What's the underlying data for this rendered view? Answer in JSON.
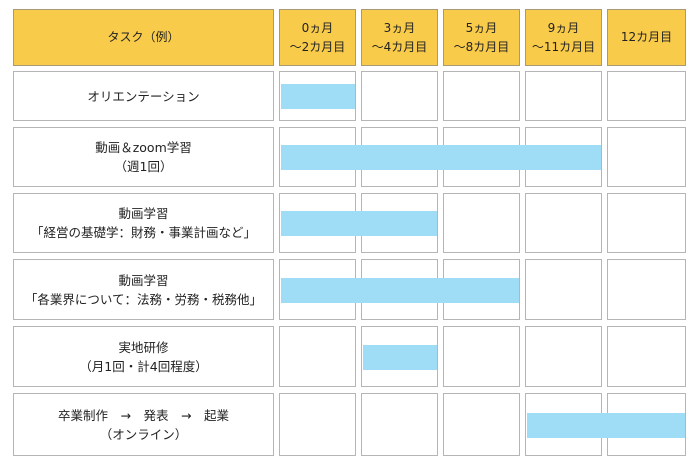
{
  "colors": {
    "header_bg": "#f9cb4a",
    "bar": "#9fdcf5",
    "border": "#b5b5b5"
  },
  "header": {
    "task_label": "タスク（例）",
    "months": [
      "0ヵ月\n〜2カ月目",
      "3ヵ月\n〜4カ月目",
      "5ヵ月\n〜8カ月目",
      "9ヵ月\n〜11カ月目",
      "12カ月目"
    ]
  },
  "rows": [
    {
      "task": "オリエンテーション",
      "bar": {
        "start_period": 1,
        "end_period": 1
      }
    },
    {
      "task": "動画＆zoom学習\n（週1回）",
      "bar": {
        "start_period": 1,
        "end_period": 4
      }
    },
    {
      "task": "動画学習\n「経営の基礎学：財務・事業計画など」",
      "bar": {
        "start_period": 1,
        "end_period": 2
      }
    },
    {
      "task": "動画学習\n「各業界について：法務・労務・税務他」",
      "bar": {
        "start_period": 1,
        "end_period": 3
      }
    },
    {
      "task": "実地研修\n（月1回・計4回程度）",
      "bar": {
        "start_period": 2,
        "end_period": 2
      }
    },
    {
      "task": "卒業制作　→　発表　→　起業\n（オンライン）",
      "bar": {
        "start_period": 4,
        "end_period": 5
      }
    }
  ]
}
